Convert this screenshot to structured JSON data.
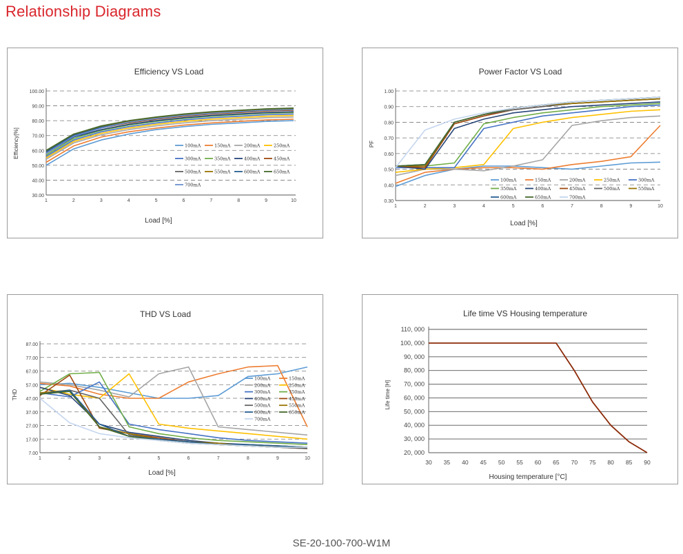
{
  "page": {
    "title": "Relationship Diagrams",
    "footer": "SE-20-100-700-W1M"
  },
  "colors": {
    "title_red": "#d9252b",
    "life_curve": "#8b2a08",
    "series": [
      "#5b9bd5",
      "#ed7d31",
      "#a5a5a5",
      "#ffc000",
      "#4472c4",
      "#70ad47",
      "#264478",
      "#9e480e",
      "#636363",
      "#997300",
      "#255e91",
      "#43682b",
      "#698ed0",
      "#c5d6ef"
    ]
  },
  "chart_data": [
    {
      "id": "efficiency",
      "type": "line",
      "title": "Efficiency VS Load",
      "xlabel": "Load [%]",
      "ylabel": "Efficiency[%]",
      "ylim": [
        30,
        100
      ],
      "y_ticks": [
        "30.00",
        "40.00",
        "50.00",
        "60.00",
        "70.00",
        "80.00",
        "90.00",
        "100.00"
      ],
      "x_ticks": [
        "1",
        "2",
        "3",
        "4",
        "5",
        "6",
        "7",
        "8",
        "9",
        "10"
      ],
      "grid": "dashed-horizontal",
      "legend": "inside-center",
      "x": [
        1,
        2,
        3,
        4,
        5,
        6,
        7,
        8,
        9,
        10
      ],
      "series": [
        {
          "name": "100mA",
          "color": "#5b9bd5",
          "values": [
            50,
            61,
            67,
            71,
            74,
            76,
            77.5,
            78.5,
            79.5,
            80
          ]
        },
        {
          "name": "150mA",
          "color": "#ed7d31",
          "values": [
            52,
            63,
            69,
            72.5,
            75,
            77,
            78.5,
            79.5,
            80.5,
            81
          ]
        },
        {
          "name": "200mA",
          "color": "#a5a5a5",
          "values": [
            54,
            65,
            70.5,
            74,
            76.5,
            78.5,
            80,
            81,
            82,
            82.5
          ]
        },
        {
          "name": "250mA",
          "color": "#ffc000",
          "values": [
            55,
            66,
            71.5,
            75,
            77.5,
            79.5,
            81,
            82,
            83,
            83.5
          ]
        },
        {
          "name": "300mA",
          "color": "#4472c4",
          "values": [
            56,
            67,
            72.5,
            76,
            78.5,
            80.5,
            82,
            83,
            84,
            84.5
          ]
        },
        {
          "name": "350mA",
          "color": "#70ad47",
          "values": [
            57,
            68,
            73.5,
            77,
            79.5,
            81.5,
            83,
            84,
            85,
            85.5
          ]
        },
        {
          "name": "400mA",
          "color": "#264478",
          "values": [
            58,
            69,
            74,
            77.5,
            80,
            82,
            83.5,
            84.5,
            85.5,
            86
          ]
        },
        {
          "name": "450mA",
          "color": "#9e480e",
          "values": [
            59,
            70,
            75,
            78.5,
            81,
            83,
            84.5,
            85.5,
            86.5,
            87
          ]
        },
        {
          "name": "500mA",
          "color": "#636363",
          "values": [
            59.5,
            70.5,
            75.5,
            79,
            81.5,
            83.5,
            85,
            86,
            87,
            87.5
          ]
        },
        {
          "name": "550mA",
          "color": "#997300",
          "values": [
            60,
            71,
            76,
            79.5,
            82,
            84,
            85.5,
            86.5,
            87.5,
            88
          ]
        },
        {
          "name": "600mA",
          "color": "#255e91",
          "values": [
            59,
            70,
            75.5,
            79,
            81.5,
            83.5,
            85,
            86,
            87,
            87.5
          ]
        },
        {
          "name": "650mA",
          "color": "#43682b",
          "values": [
            60,
            71,
            76.5,
            80,
            82.5,
            84.5,
            86,
            87,
            88,
            88.5
          ]
        },
        {
          "name": "700mA",
          "color": "#698ed0",
          "values": [
            58,
            69.5,
            75,
            79,
            81.5,
            83.5,
            85,
            86,
            87,
            87.5
          ]
        }
      ]
    },
    {
      "id": "power-factor",
      "type": "line",
      "title": "Power Factor VS Load",
      "xlabel": "Load [%]",
      "ylabel": "PF",
      "ylim": [
        0.3,
        1.0
      ],
      "y_ticks": [
        "0.30",
        "0.40",
        "0.50",
        "0.60",
        "0.70",
        "0.80",
        "0.90",
        "1.00"
      ],
      "x_ticks": [
        "1",
        "2",
        "3",
        "4",
        "5",
        "6",
        "7",
        "8",
        "9",
        "10"
      ],
      "grid": "dashed-horizontal",
      "legend": "bottom-inside",
      "x": [
        1,
        2,
        3,
        4,
        5,
        6,
        7,
        8,
        9,
        10
      ],
      "series": [
        {
          "name": "100mA",
          "color": "#5b9bd5",
          "values": [
            0.39,
            0.46,
            0.5,
            0.52,
            0.52,
            0.51,
            0.5,
            0.52,
            0.54,
            0.545
          ]
        },
        {
          "name": "150mA",
          "color": "#ed7d31",
          "values": [
            0.41,
            0.48,
            0.5,
            0.51,
            0.51,
            0.5,
            0.53,
            0.55,
            0.58,
            0.78
          ]
        },
        {
          "name": "200mA",
          "color": "#a5a5a5",
          "values": [
            0.46,
            0.5,
            0.5,
            0.49,
            0.52,
            0.56,
            0.78,
            0.81,
            0.83,
            0.84
          ]
        },
        {
          "name": "250mA",
          "color": "#ffc000",
          "values": [
            0.48,
            0.5,
            0.51,
            0.53,
            0.76,
            0.8,
            0.83,
            0.85,
            0.87,
            0.88
          ]
        },
        {
          "name": "300mA",
          "color": "#4472c4",
          "values": [
            0.51,
            0.51,
            0.51,
            0.76,
            0.8,
            0.84,
            0.86,
            0.88,
            0.9,
            0.91
          ]
        },
        {
          "name": "350mA",
          "color": "#70ad47",
          "values": [
            0.52,
            0.52,
            0.54,
            0.79,
            0.83,
            0.86,
            0.88,
            0.9,
            0.91,
            0.92
          ]
        },
        {
          "name": "400mA",
          "color": "#264478",
          "values": [
            0.52,
            0.5,
            0.76,
            0.82,
            0.86,
            0.88,
            0.9,
            0.91,
            0.92,
            0.93
          ]
        },
        {
          "name": "450mA",
          "color": "#9e480e",
          "values": [
            0.52,
            0.51,
            0.79,
            0.84,
            0.88,
            0.9,
            0.92,
            0.93,
            0.94,
            0.95
          ]
        },
        {
          "name": "500mA",
          "color": "#636363",
          "values": [
            0.52,
            0.52,
            0.8,
            0.85,
            0.88,
            0.9,
            0.92,
            0.93,
            0.94,
            0.95
          ]
        },
        {
          "name": "550mA",
          "color": "#997300",
          "values": [
            0.52,
            0.52,
            0.8,
            0.85,
            0.89,
            0.91,
            0.92,
            0.93,
            0.94,
            0.95
          ]
        },
        {
          "name": "600mA",
          "color": "#255e91",
          "values": [
            0.52,
            0.53,
            0.8,
            0.85,
            0.89,
            0.91,
            0.93,
            0.94,
            0.95,
            0.96
          ]
        },
        {
          "name": "650mA",
          "color": "#43682b",
          "values": [
            0.52,
            0.53,
            0.8,
            0.85,
            0.89,
            0.91,
            0.93,
            0.94,
            0.95,
            0.96
          ]
        },
        {
          "name": "700mA",
          "color": "#c5d6ef",
          "values": [
            0.51,
            0.75,
            0.82,
            0.86,
            0.89,
            0.91,
            0.93,
            0.94,
            0.95,
            0.96
          ]
        }
      ]
    },
    {
      "id": "thd",
      "type": "line",
      "title": "THD VS Load",
      "xlabel": "Load [%]",
      "ylabel": "THD",
      "ylim": [
        7,
        87
      ],
      "y_ticks": [
        "7.00",
        "17.00",
        "27.00",
        "37.00",
        "47.00",
        "57.00",
        "67.00",
        "77.00",
        "87.00"
      ],
      "x_ticks": [
        "1",
        "2",
        "3",
        "4",
        "5",
        "6",
        "7",
        "8",
        "9",
        "10"
      ],
      "grid": "dashed-horizontal",
      "legend": "right-inside",
      "x": [
        1,
        2,
        3,
        4,
        5,
        6,
        7,
        8,
        9,
        10
      ],
      "series": [
        {
          "name": "100mA",
          "color": "#5b9bd5",
          "values": [
            57,
            58,
            55,
            51,
            47,
            47,
            49,
            63,
            65,
            70
          ]
        },
        {
          "name": "150mA",
          "color": "#ed7d31",
          "values": [
            58,
            56,
            50,
            47,
            47,
            59,
            65,
            70,
            71,
            26
          ]
        },
        {
          "name": "200mA",
          "color": "#a5a5a5",
          "values": [
            59,
            57,
            53,
            48,
            65,
            70,
            26,
            24,
            22,
            20
          ]
        },
        {
          "name": "250mA",
          "color": "#ffc000",
          "values": [
            55,
            50,
            47,
            65,
            28,
            25,
            23,
            21,
            19,
            17
          ]
        },
        {
          "name": "300mA",
          "color": "#4472c4",
          "values": [
            51,
            48,
            59,
            28,
            24,
            21,
            18,
            16,
            15,
            14
          ]
        },
        {
          "name": "350mA",
          "color": "#70ad47",
          "values": [
            52,
            65,
            66,
            26,
            21,
            18,
            16,
            15,
            14,
            13
          ]
        },
        {
          "name": "400mA",
          "color": "#264478",
          "values": [
            55,
            49,
            28,
            22,
            19,
            16,
            14,
            13,
            12,
            11
          ]
        },
        {
          "name": "450mA",
          "color": "#9e480e",
          "values": [
            49,
            64,
            25,
            21,
            18,
            15,
            13,
            12,
            11,
            10
          ]
        },
        {
          "name": "500mA",
          "color": "#636363",
          "values": [
            50,
            53,
            47,
            20,
            17,
            15,
            13,
            12,
            11,
            10
          ]
        },
        {
          "name": "550mA",
          "color": "#997300",
          "values": [
            51,
            53,
            26,
            21,
            17,
            15,
            14,
            12,
            12,
            11
          ]
        },
        {
          "name": "600mA",
          "color": "#255e91",
          "values": [
            50,
            53,
            28,
            19,
            17,
            15,
            13,
            13,
            12,
            11
          ]
        },
        {
          "name": "650mA",
          "color": "#43682b",
          "values": [
            50,
            52,
            26,
            19,
            16,
            14,
            13,
            12,
            11,
            11
          ]
        },
        {
          "name": "700mA",
          "color": "#c5d6ef",
          "values": [
            47,
            29,
            21,
            18,
            16,
            14,
            13,
            12,
            11,
            11
          ]
        }
      ]
    },
    {
      "id": "life-time",
      "type": "line",
      "title": "Life time VS Housing temperature",
      "xlabel": "Housing temperature [°C]",
      "ylabel": "Life time [H]",
      "ylim": [
        20000,
        110000
      ],
      "xlim": [
        30,
        90
      ],
      "y_ticks": [
        "20, 000",
        "30, 000",
        "40, 000",
        "50, 000",
        "60, 000",
        "70, 000",
        "80, 000",
        "90, 000",
        "100, 000",
        "110, 000"
      ],
      "x_ticks": [
        "30",
        "35",
        "40",
        "45",
        "50",
        "55",
        "60",
        "65",
        "70",
        "75",
        "80",
        "85",
        "90"
      ],
      "grid": "solid-horizontal",
      "legend": "none",
      "x": [
        30,
        65,
        70,
        75,
        80,
        85,
        90
      ],
      "values": [
        100000,
        100000,
        80000,
        57000,
        40000,
        28000,
        20000
      ]
    }
  ]
}
